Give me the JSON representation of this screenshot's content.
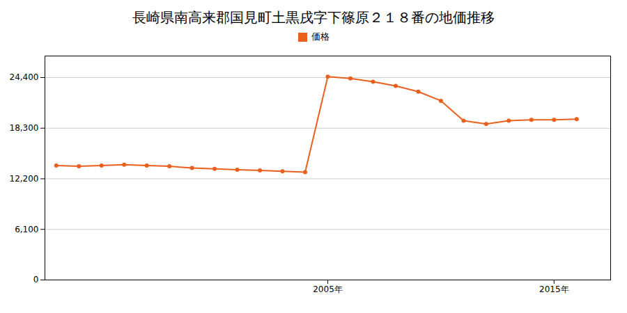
{
  "chart_data": {
    "type": "line",
    "title": "長崎県南高来郡国見町土黒戌字下篠原２１８番の地価推移",
    "x": [
      1993,
      1994,
      1995,
      1996,
      1997,
      1998,
      1999,
      2000,
      2001,
      2002,
      2003,
      2004,
      2005,
      2006,
      2007,
      2008,
      2009,
      2010,
      2011,
      2012,
      2013,
      2014,
      2015,
      2016
    ],
    "series": [
      {
        "name": "価格",
        "color": "#e8601c",
        "marker": "circle",
        "values": [
          13800,
          13700,
          13800,
          13900,
          13800,
          13700,
          13500,
          13400,
          13300,
          13200,
          13100,
          13000,
          24500,
          24300,
          23900,
          23400,
          22700,
          21600,
          19200,
          18800,
          19200,
          19300,
          19300,
          19400
        ]
      }
    ],
    "xlim": [
      1992.5,
      2017.5
    ],
    "xticks": [
      {
        "value": 2005,
        "label": "2005年"
      },
      {
        "value": 2015,
        "label": "2015年"
      }
    ],
    "ylim": [
      0,
      27000
    ],
    "yticks": [
      0,
      {
        "value": 6100,
        "label": "6,100"
      },
      {
        "value": 12200,
        "label": "12,200"
      },
      {
        "value": 18300,
        "label": "18,300"
      },
      {
        "value": 24400,
        "label": "24,400"
      }
    ],
    "grid": "y",
    "legend": "top"
  }
}
